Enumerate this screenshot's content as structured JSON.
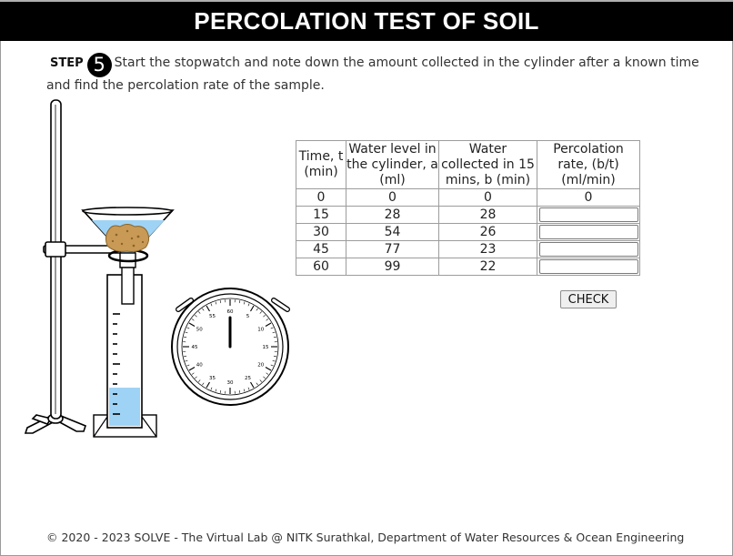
{
  "title": "PERCOLATION TEST OF SOIL",
  "step": {
    "label": "STEP",
    "number": "5",
    "instruction": "Start the stopwatch and note down the amount collected in the cylinder after a known time and find the percolation rate of the sample."
  },
  "table": {
    "headers": [
      "Time, t (min)",
      "Water level in the cylinder, a (ml)",
      "Water collected in 15 mins, b (min)",
      "Percolation rate, (b/t) (ml/min)"
    ],
    "rows": [
      {
        "time": "0",
        "level": "0",
        "collected": "0",
        "rate": "0"
      },
      {
        "time": "15",
        "level": "28",
        "collected": "28",
        "rate": ""
      },
      {
        "time": "30",
        "level": "54",
        "collected": "26",
        "rate": ""
      },
      {
        "time": "45",
        "level": "77",
        "collected": "23",
        "rate": ""
      },
      {
        "time": "60",
        "level": "99",
        "collected": "22",
        "rate": ""
      }
    ]
  },
  "check_label": "CHECK",
  "stopwatch": {
    "dial_numbers": [
      "60",
      "5",
      "10",
      "15",
      "20",
      "25",
      "30",
      "35",
      "40",
      "45",
      "50",
      "55"
    ]
  },
  "colors": {
    "water": "#9fd3f5",
    "soil": "#c89a55",
    "title_bg": "#000000"
  },
  "footer": "© 2020 - 2023 SOLVE - The Virtual Lab @ NITK Surathkal, Department of Water Resources & Ocean Engineering"
}
